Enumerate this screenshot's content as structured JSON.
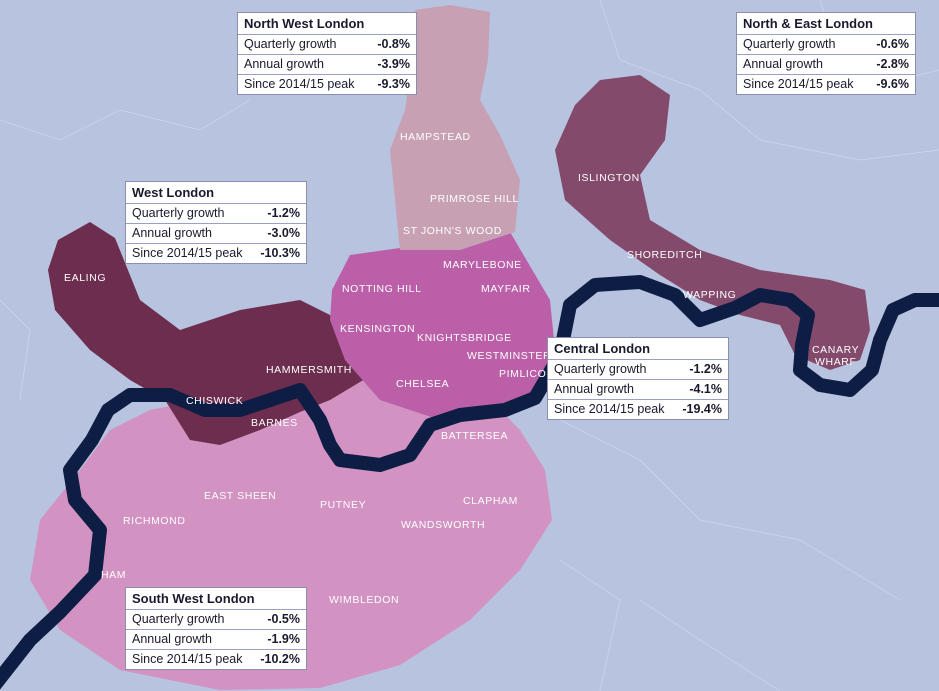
{
  "colors": {
    "background": "#b7c3df",
    "north_west": "#c7a0b3",
    "north_east": "#834a6c",
    "west": "#6c2d4e",
    "central": "#bb5fa8",
    "south_west": "#d292c2",
    "river": "#0d1d44"
  },
  "areas": {
    "hampstead": "HAMPSTEAD",
    "primrose_hill": "PRIMROSE HILL",
    "st_johns_wood": "ST JOHN'S WOOD",
    "islington": "ISLINGTON",
    "shoreditch": "SHOREDITCH",
    "wapping": "WAPPING",
    "canary_wharf_1": "CANARY",
    "canary_wharf_2": "WHARF",
    "ealing": "EALING",
    "hammersmith": "HAMMERSMITH",
    "chiswick": "CHISWICK",
    "marylebone": "MARYLEBONE",
    "notting_hill": "NOTTING HILL",
    "mayfair": "MAYFAIR",
    "kensington": "KENSINGTON",
    "knightsbridge": "KNIGHTSBRIDGE",
    "westminster": "WESTMINSTER",
    "pimlico": "PIMLICO",
    "chelsea": "CHELSEA",
    "battersea": "BATTERSEA",
    "barnes": "BARNES",
    "east_sheen": "EAST SHEEN",
    "putney": "PUTNEY",
    "clapham": "CLAPHAM",
    "richmond": "RICHMOND",
    "wandsworth": "WANDSWORTH",
    "ham": "HAM",
    "wimbledon": "WIMBLEDON"
  },
  "regions": {
    "north_west": {
      "title": "North West London",
      "rows": [
        {
          "label": "Quarterly growth",
          "value": "-0.8%"
        },
        {
          "label": "Annual growth",
          "value": "-3.9%"
        },
        {
          "label": "Since 2014/15 peak",
          "value": "-9.3%"
        }
      ]
    },
    "north_east": {
      "title": "North & East London",
      "rows": [
        {
          "label": "Quarterly growth",
          "value": "-0.6%"
        },
        {
          "label": "Annual growth",
          "value": "-2.8%"
        },
        {
          "label": "Since 2014/15 peak",
          "value": "-9.6%"
        }
      ]
    },
    "west": {
      "title": "West London",
      "rows": [
        {
          "label": "Quarterly growth",
          "value": "-1.2%"
        },
        {
          "label": "Annual growth",
          "value": "-3.0%"
        },
        {
          "label": "Since 2014/15 peak",
          "value": "-10.3%"
        }
      ]
    },
    "central": {
      "title": "Central London",
      "rows": [
        {
          "label": "Quarterly growth",
          "value": "-1.2%"
        },
        {
          "label": "Annual growth",
          "value": "-4.1%"
        },
        {
          "label": "Since 2014/15 peak",
          "value": "-19.4%"
        }
      ]
    },
    "south_west": {
      "title": "South West London",
      "rows": [
        {
          "label": "Quarterly growth",
          "value": "-0.5%"
        },
        {
          "label": "Annual growth",
          "value": "-1.9%"
        },
        {
          "label": "Since 2014/15 peak",
          "value": "-10.2%"
        }
      ]
    }
  }
}
